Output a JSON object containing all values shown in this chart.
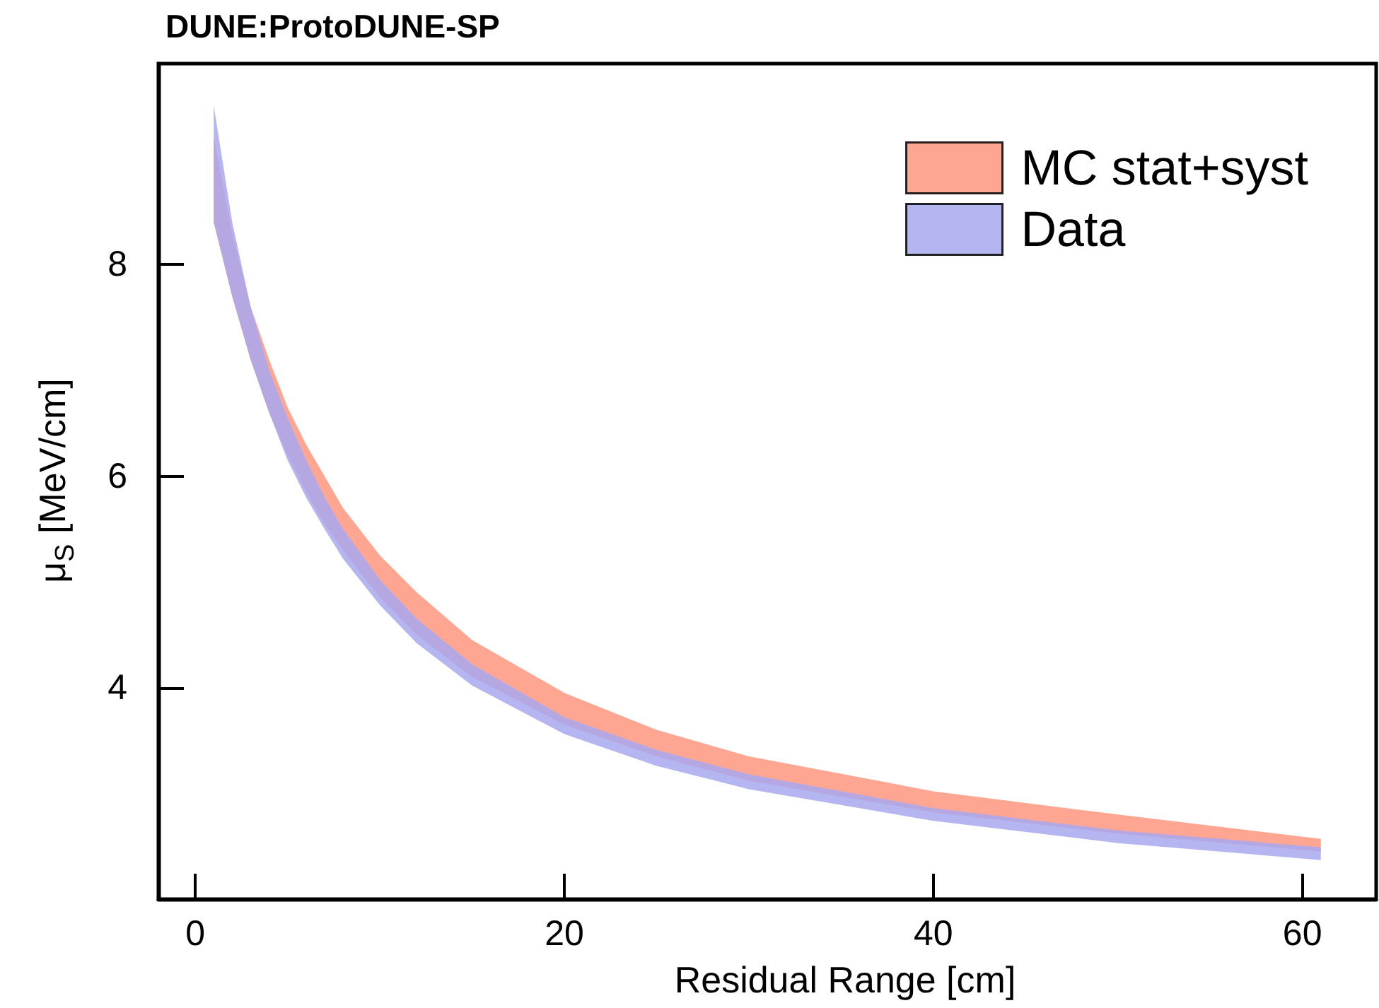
{
  "chart_data": {
    "type": "area",
    "title": "DUNE:ProtoDUNE-SP",
    "xlabel": "Residual Range [cm]",
    "ylabel": "μ$_{S}$ [MeV/cm]",
    "xlim": [
      -2,
      64
    ],
    "xticks": [
      0,
      20,
      40,
      60
    ],
    "ylim": [
      2,
      9.9
    ],
    "yticks": [
      4,
      6,
      8
    ],
    "grid": false,
    "legend": "top right",
    "series": [
      {
        "name": "MC stat+syst",
        "color": "#ff9680",
        "values": [
          null,
          null,
          null,
          null,
          null,
          null,
          null,
          null,
          null,
          null,
          null,
          null,
          null,
          null,
          null,
          null,
          null
        ],
        "x": [
          1,
          2,
          3,
          4,
          5,
          6,
          7,
          8,
          10,
          12,
          15,
          20,
          25,
          30,
          40,
          50,
          61
        ],
        "lower": [
          8.4,
          7.7,
          7.1,
          6.6,
          6.2,
          5.85,
          5.55,
          5.3,
          4.85,
          4.5,
          4.1,
          3.65,
          3.35,
          3.12,
          2.82,
          2.62,
          2.45
        ],
        "upper": [
          9.2,
          8.3,
          7.6,
          7.1,
          6.65,
          6.3,
          6.0,
          5.7,
          5.25,
          4.9,
          4.45,
          3.95,
          3.6,
          3.35,
          3.02,
          2.8,
          2.57
        ]
      },
      {
        "name": "Data",
        "color": "#a8a8f0",
        "values": [
          null,
          null,
          null,
          null,
          null,
          null,
          null,
          null,
          null,
          null,
          null,
          null,
          null,
          null,
          null,
          null,
          null
        ],
        "x": [
          1,
          2,
          3,
          4,
          5,
          6,
          7,
          8,
          10,
          12,
          15,
          20,
          25,
          30,
          40,
          50,
          61
        ],
        "lower": [
          8.4,
          7.7,
          7.1,
          6.6,
          6.15,
          5.8,
          5.5,
          5.22,
          4.78,
          4.42,
          4.02,
          3.56,
          3.26,
          3.04,
          2.74,
          2.53,
          2.37
        ],
        "upper": [
          9.5,
          8.4,
          7.6,
          7.0,
          6.55,
          6.15,
          5.8,
          5.5,
          5.02,
          4.65,
          4.22,
          3.72,
          3.41,
          3.18,
          2.86,
          2.65,
          2.49
        ]
      }
    ]
  }
}
